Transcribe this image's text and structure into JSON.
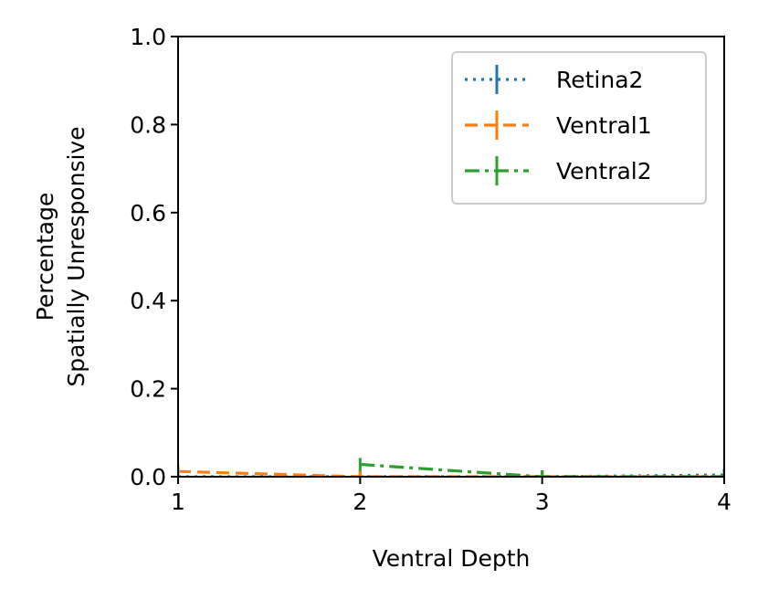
{
  "chart_data": {
    "type": "line",
    "title": "",
    "xlabel": "Ventral Depth",
    "ylabel": [
      "Percentage",
      "Spatially Unresponsive"
    ],
    "xlim": [
      1,
      4
    ],
    "ylim": [
      0,
      1
    ],
    "x_ticks": [
      "1",
      "2",
      "3",
      "4"
    ],
    "y_ticks": [
      "0.0",
      "0.2",
      "0.4",
      "0.6",
      "0.8",
      "1.0"
    ],
    "x_tick_values": [
      1,
      2,
      3,
      4
    ],
    "y_tick_values": [
      0,
      0.2,
      0.4,
      0.6,
      0.8,
      1.0
    ],
    "grid": false,
    "legend_position": "top-right",
    "series": [
      {
        "name": "Retina2",
        "color": "#1f77b4",
        "line_style": "dotted",
        "x": [
          1,
          2,
          3,
          4
        ],
        "y": [
          0.0,
          0.0,
          0.0,
          0.004
        ]
      },
      {
        "name": "Ventral1",
        "color": "#ff7f0e",
        "line_style": "dashed",
        "x": [
          1,
          2,
          3,
          4
        ],
        "y": [
          0.012,
          0.0,
          0.0,
          0.0
        ]
      },
      {
        "name": "Ventral2",
        "color": "#2ca02c",
        "line_style": "dashdot",
        "x": [
          2,
          3,
          4
        ],
        "y": [
          0.028,
          0.0,
          0.0
        ]
      }
    ]
  }
}
